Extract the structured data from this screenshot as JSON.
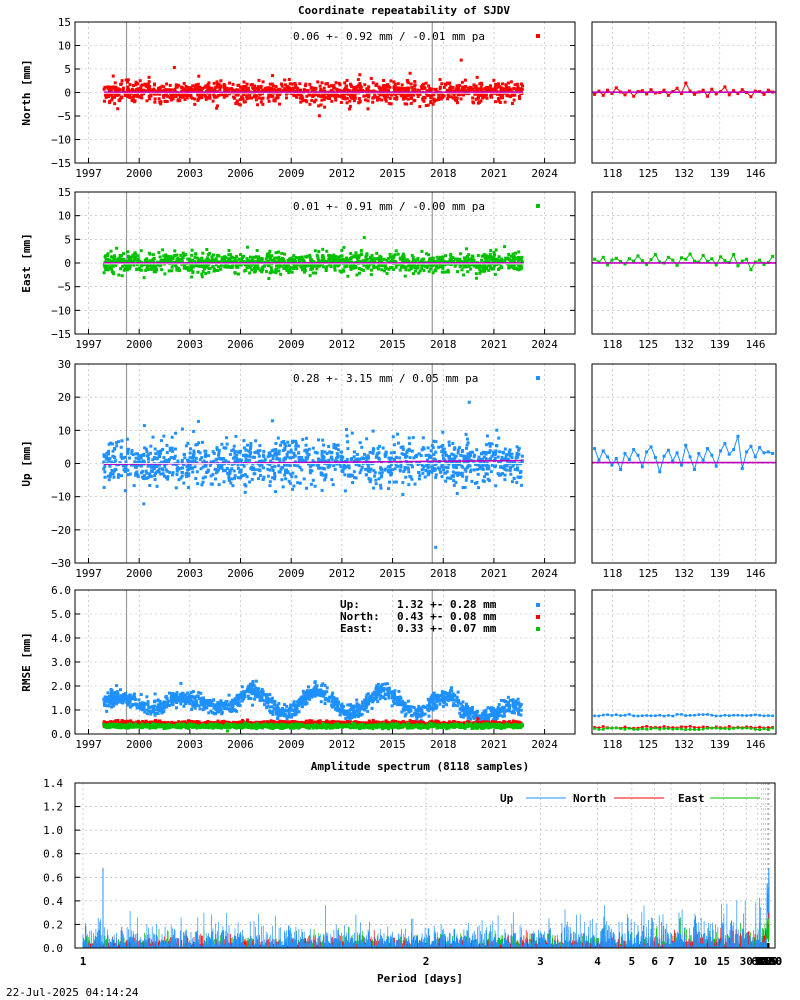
{
  "title": "Coordinate repeatability of SJDV",
  "timestamp": "22-Jul-2025 04:14:24",
  "colors": {
    "north": "#ff0000",
    "east": "#00c000",
    "up": "#1e90ff",
    "fit": "#c000c0",
    "frame": "#000000"
  },
  "x_years": [
    "1997",
    "2000",
    "2003",
    "2006",
    "2009",
    "2012",
    "2015",
    "2018",
    "2021",
    "2024"
  ],
  "x_recent_ticks": [
    "118",
    "125",
    "132",
    "139",
    "146"
  ],
  "chart_data": [
    {
      "type": "scatter",
      "id": "north",
      "ylabel": "North [mm]",
      "ylim": [
        -15,
        15
      ],
      "yticks": [
        "15",
        "10",
        "5",
        "0",
        "−5",
        "−10",
        "−15"
      ],
      "yvals": [
        15,
        10,
        5,
        0,
        -5,
        -10,
        -15
      ],
      "stat": "0.06 +- 0.92 mm / -0.01 mm pa",
      "x_range": [
        1997.9,
        2022.7
      ],
      "mean": 0.06,
      "sigma": 0.92,
      "trend_mm_pa": -0.01,
      "recent": [
        -0.4,
        0.3,
        -0.6,
        0.5,
        -0.2,
        1.0,
        0.1,
        -0.5,
        0.3,
        -0.8,
        0.2,
        0.4,
        -0.3,
        0.6,
        -0.1,
        0.0,
        0.5,
        -0.6,
        0.2,
        0.9,
        -0.2,
        2.0,
        0.3,
        -0.4,
        0.1,
        0.5,
        -0.8,
        0.7,
        -0.3,
        0.2,
        1.2,
        -0.5,
        0.4,
        -0.2,
        0.6,
        0.0,
        -0.9,
        0.3,
        0.2,
        -0.4,
        0.5,
        0.1
      ]
    },
    {
      "type": "scatter",
      "id": "east",
      "ylabel": "East [mm]",
      "ylim": [
        -15,
        15
      ],
      "yticks": [
        "15",
        "10",
        "5",
        "0",
        "−5",
        "−10",
        "−15"
      ],
      "yvals": [
        15,
        10,
        5,
        0,
        -5,
        -10,
        -15
      ],
      "stat": "0.01 +- 0.91 mm / -0.00 mm pa",
      "x_range": [
        1997.9,
        2022.7
      ],
      "mean": 0.01,
      "sigma": 0.91,
      "trend_mm_pa": -0.0,
      "recent": [
        0.8,
        0.2,
        1.2,
        -0.4,
        0.6,
        1.0,
        0.3,
        -0.2,
        0.9,
        0.4,
        1.5,
        0.5,
        -0.3,
        0.7,
        1.8,
        0.2,
        0.0,
        1.2,
        0.6,
        -0.5,
        1.1,
        0.8,
        1.9,
        0.4,
        0.2,
        1.6,
        0.3,
        0.9,
        -0.4,
        1.3,
        0.5,
        0.1,
        1.8,
        -0.6,
        0.4,
        0.8,
        -1.4,
        0.2,
        0.6,
        -0.3,
        0.1,
        1.4
      ]
    },
    {
      "type": "scatter",
      "id": "up",
      "ylabel": "Up [mm]",
      "ylim": [
        -30,
        30
      ],
      "yticks": [
        "30",
        "20",
        "10",
        "0",
        "−10",
        "−20",
        "−30"
      ],
      "yvals": [
        30,
        20,
        10,
        0,
        -10,
        -20,
        -30
      ],
      "stat": "0.28 +- 3.15 mm /  0.05 mm pa",
      "x_range": [
        1997.9,
        2022.7
      ],
      "mean": 0.28,
      "sigma": 3.15,
      "trend_mm_pa": 0.05,
      "recent": [
        4.5,
        1.0,
        3.8,
        2.0,
        -0.5,
        1.5,
        -1.8,
        3.0,
        1.2,
        4.2,
        2.5,
        -1.0,
        3.5,
        5.0,
        1.8,
        -2.5,
        2.2,
        4.0,
        0.8,
        3.2,
        -0.5,
        5.5,
        2.0,
        -1.8,
        3.0,
        1.0,
        4.5,
        2.5,
        -0.8,
        3.8,
        6.0,
        2.8,
        4.2,
        8.2,
        -1.5,
        3.5,
        5.2,
        2.0,
        4.8,
        3.2,
        3.5,
        3.0
      ]
    },
    {
      "type": "scatter",
      "id": "rmse",
      "ylabel": "RMSE [mm]",
      "ylim": [
        0,
        6
      ],
      "yticks": [
        "6.0",
        "5.0",
        "4.0",
        "3.0",
        "2.0",
        "1.0",
        "0.0"
      ],
      "yvals": [
        6,
        5,
        4,
        3,
        2,
        1,
        0
      ],
      "x_range": [
        1997.9,
        2022.7
      ],
      "legend": [
        {
          "label": "Up:",
          "value": "1.32 +- 0.28 mm",
          "color": "#1e90ff"
        },
        {
          "label": "North:",
          "value": "0.43 +- 0.08 mm",
          "color": "#ff0000"
        },
        {
          "label": "East:",
          "value": "0.33 +- 0.07 mm",
          "color": "#00c000"
        }
      ],
      "series": [
        {
          "name": "Up",
          "mean": 1.32,
          "sigma": 0.28
        },
        {
          "name": "North",
          "mean": 0.43,
          "sigma": 0.08
        },
        {
          "name": "East",
          "mean": 0.33,
          "sigma": 0.07
        }
      ],
      "recent_up": 0.78,
      "recent_north": 0.28,
      "recent_east": 0.22
    },
    {
      "type": "line",
      "id": "spectrum",
      "title": "Amplitude spectrum (8118 samples)",
      "xlabel": "Period [days]",
      "xscale": "reciprocal",
      "xticks": [
        "1",
        "2",
        "3",
        "4",
        "5",
        "6",
        "7",
        "10",
        "15",
        "30",
        "61",
        "91",
        "122",
        "183",
        "365",
        "730",
        "2190",
        "4380",
        "8760"
      ],
      "xtick_days": [
        1,
        2,
        3,
        4,
        5,
        6,
        7,
        10,
        15,
        30,
        61,
        91,
        122,
        183,
        365,
        730,
        2190,
        4380,
        8760
      ],
      "ylim": [
        0,
        1.4
      ],
      "yticks": [
        "1.4",
        "1.2",
        "1.0",
        "0.8",
        "0.6",
        "0.4",
        "0.2",
        "0.0"
      ],
      "yvals": [
        1.4,
        1.2,
        1.0,
        0.8,
        0.6,
        0.4,
        0.2,
        0.0
      ],
      "legend": [
        {
          "label": "Up",
          "color": "#1e90ff"
        },
        {
          "label": "North",
          "color": "#ff0000"
        },
        {
          "label": "East",
          "color": "#00c000"
        }
      ],
      "series": [
        {
          "name": "Up",
          "low_freq": [
            [
              365,
              0.55
            ],
            [
              520,
              0.3
            ],
            [
              730,
              0.45
            ],
            [
              1100,
              0.25
            ],
            [
              1460,
              0.52
            ],
            [
              2190,
              0.35
            ],
            [
              2920,
              0.68
            ],
            [
              4380,
              0.28
            ],
            [
              8760,
              0.58
            ]
          ]
        },
        {
          "name": "North",
          "low_freq": [
            [
              365,
              0.22
            ],
            [
              520,
              0.1
            ],
            [
              730,
              0.2
            ],
            [
              1100,
              0.08
            ],
            [
              1460,
              0.12
            ],
            [
              2190,
              0.18
            ],
            [
              2920,
              0.12
            ],
            [
              4380,
              0.3
            ],
            [
              8760,
              0.22
            ]
          ]
        },
        {
          "name": "East",
          "low_freq": [
            [
              365,
              0.25
            ],
            [
              520,
              0.08
            ],
            [
              730,
              0.18
            ],
            [
              1100,
              0.05
            ],
            [
              1460,
              0.1
            ],
            [
              2190,
              0.14
            ],
            [
              2920,
              0.25
            ],
            [
              4380,
              0.08
            ],
            [
              8760,
              0.25
            ]
          ]
        }
      ],
      "spike_day1": 0.68
    }
  ]
}
